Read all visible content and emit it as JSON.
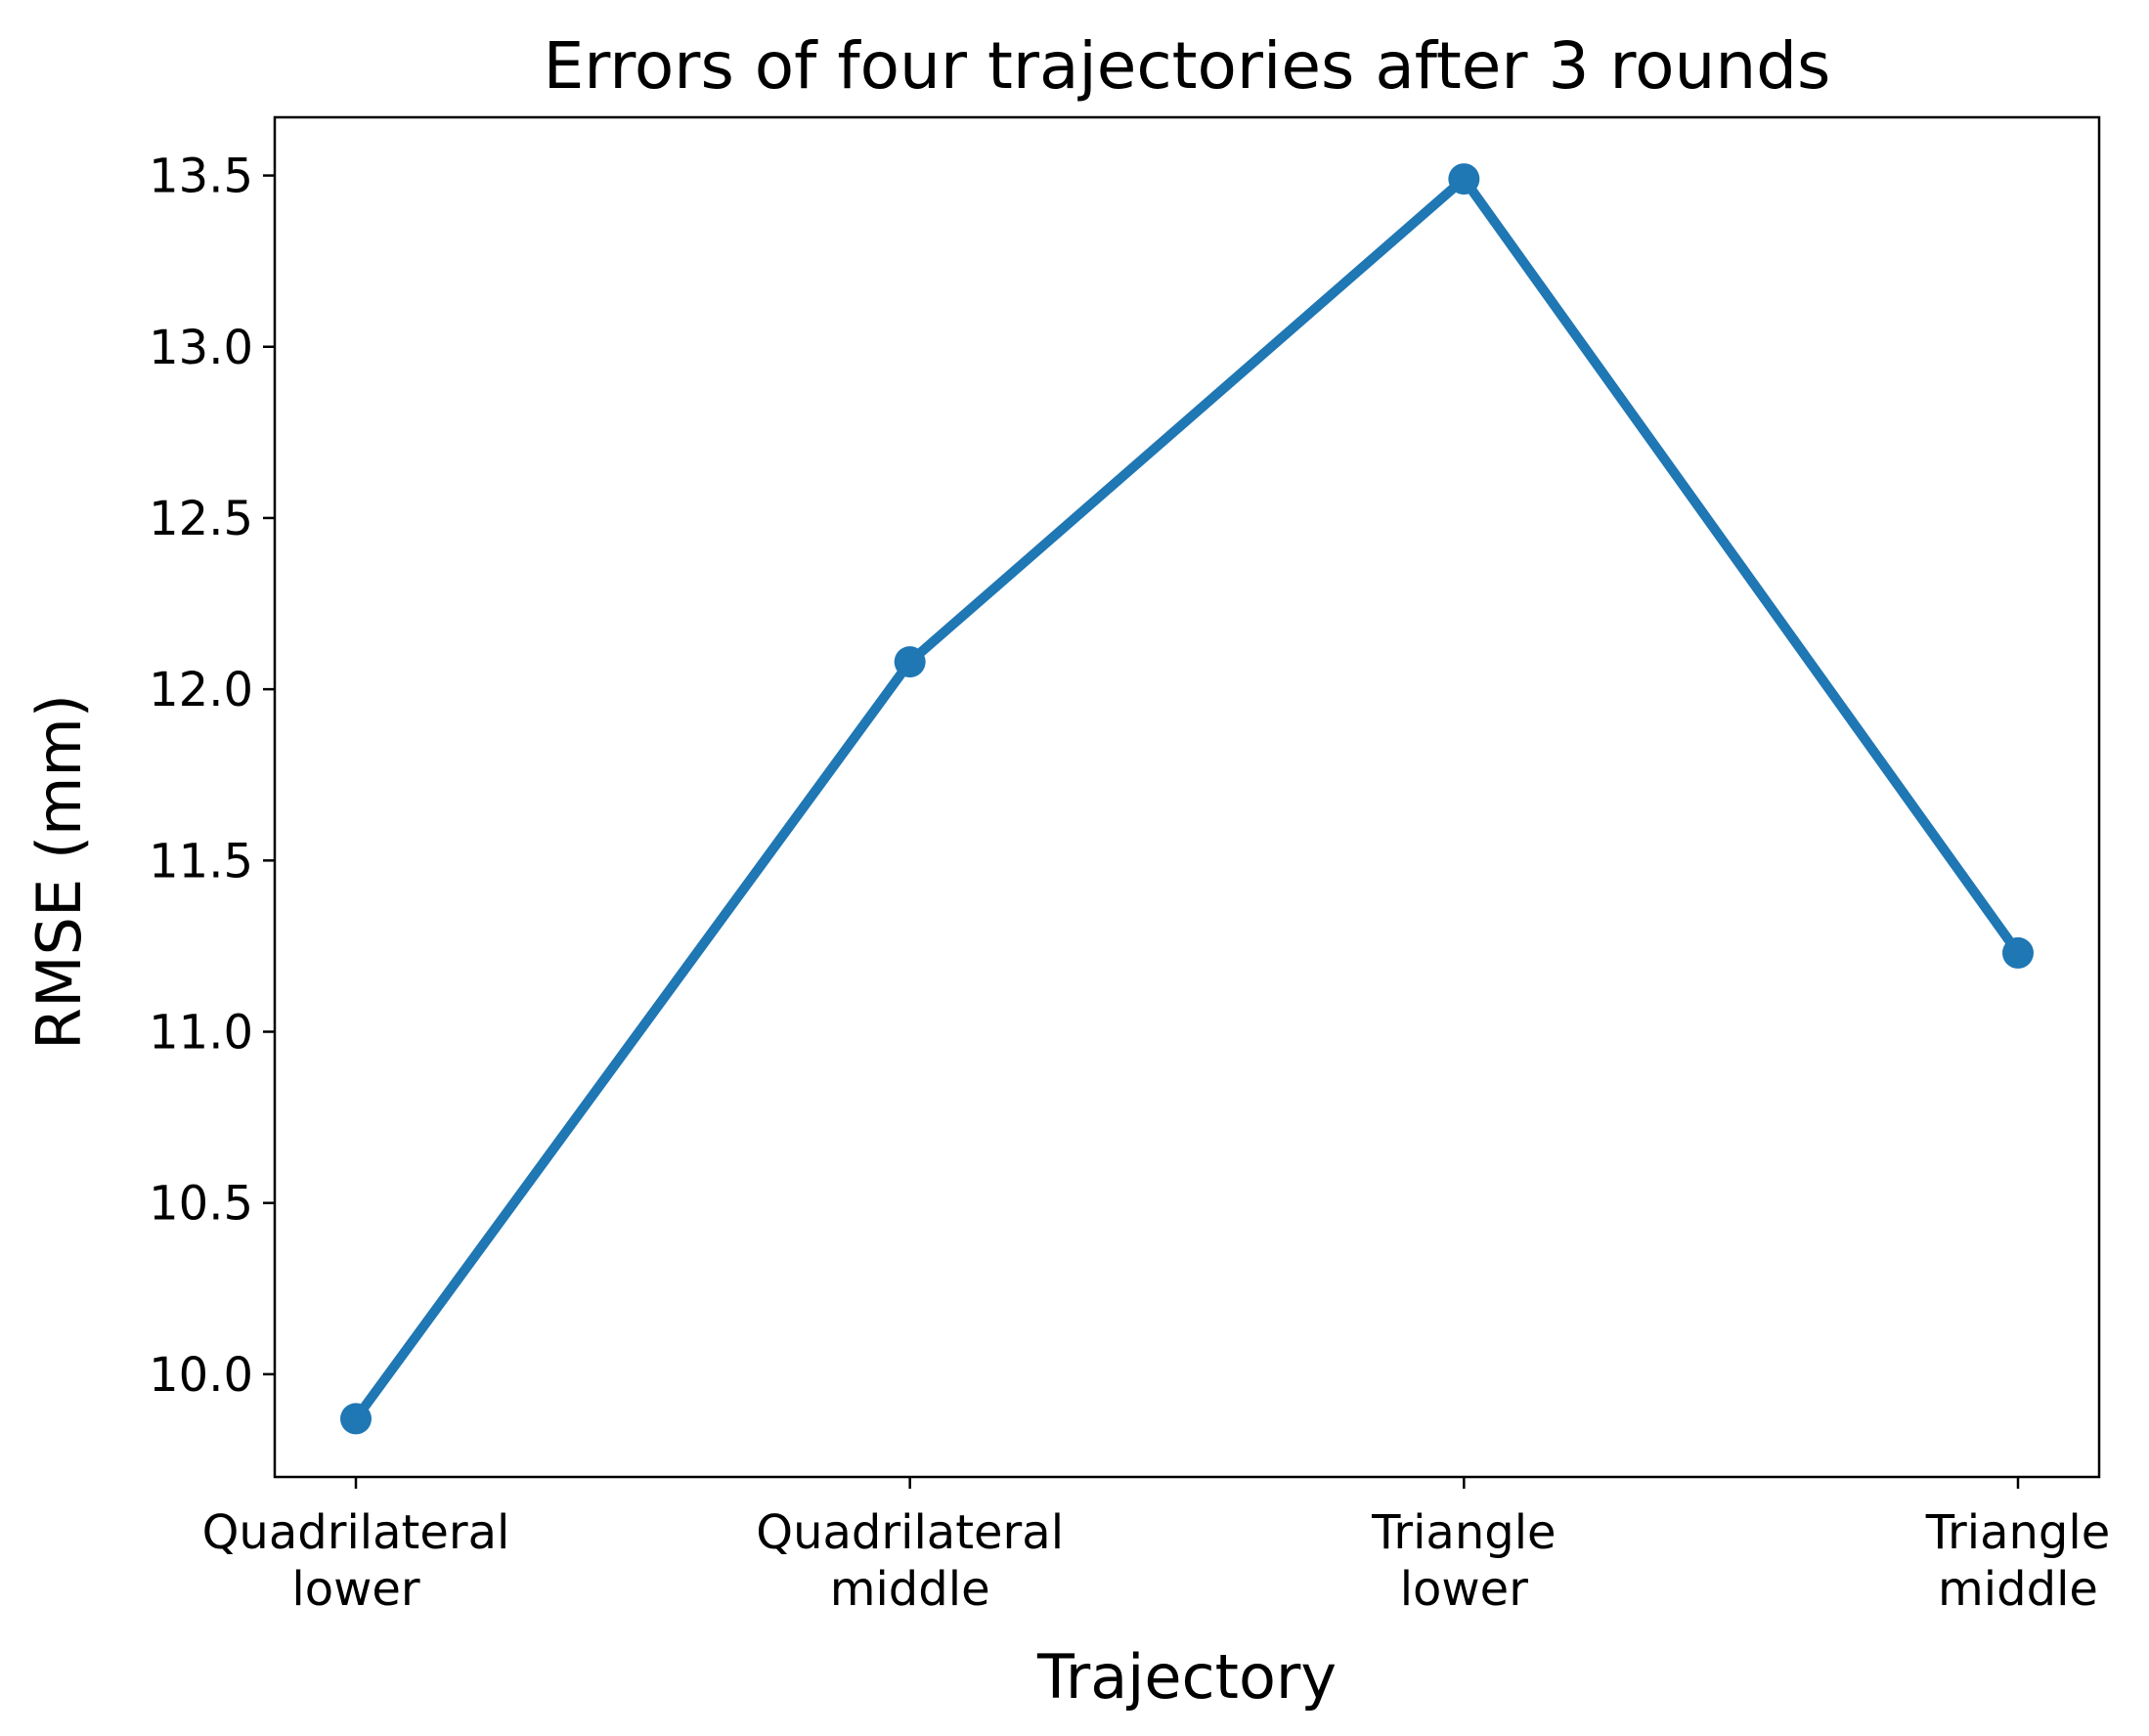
{
  "colors": {
    "line": "#1f77b4",
    "axes": "#000000",
    "background": "#ffffff"
  },
  "chart_data": {
    "type": "line",
    "title": "Errors of four trajectories after 3 rounds",
    "xlabel": "Trajectory",
    "ylabel": "RMSE (mm)",
    "categories": [
      [
        "Quadrilateral",
        "lower"
      ],
      [
        "Quadrilateral",
        "middle"
      ],
      [
        "Triangle",
        "lower"
      ],
      [
        "Triangle",
        "middle"
      ]
    ],
    "values": [
      9.87,
      12.08,
      13.49,
      11.23
    ],
    "ylim": [
      9.7,
      13.67
    ],
    "yticks": [
      "10.0",
      "10.5",
      "11.0",
      "11.5",
      "12.0",
      "12.5",
      "13.0",
      "13.5"
    ],
    "grid": false,
    "legend": false,
    "marker": "circle"
  }
}
